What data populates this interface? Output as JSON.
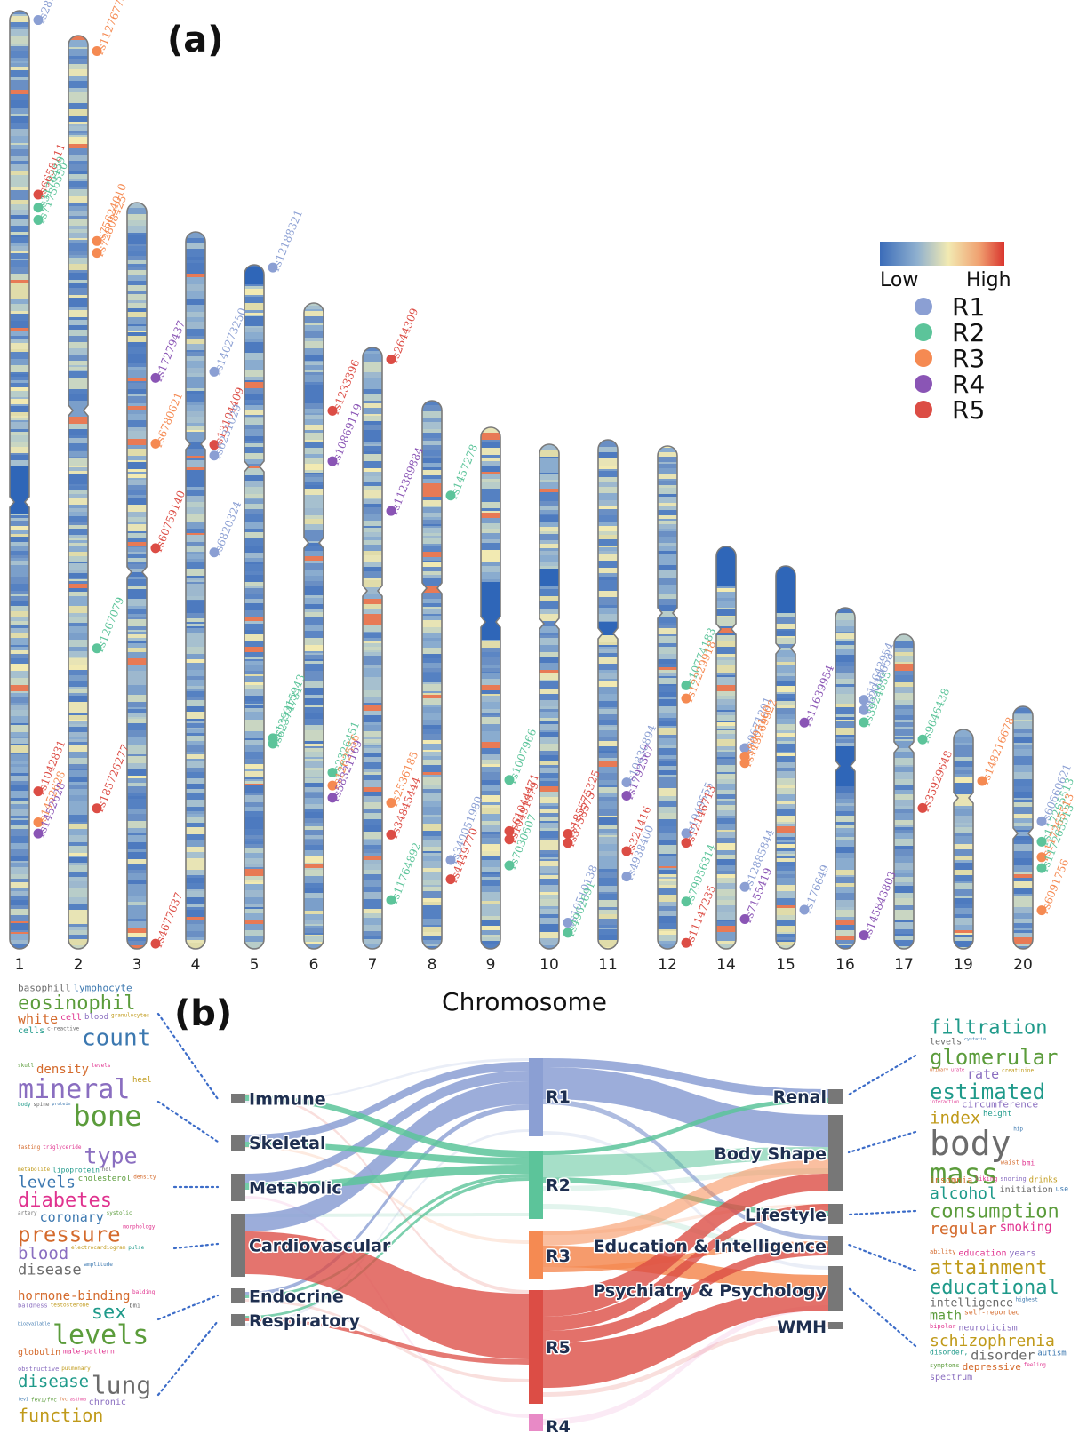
{
  "figure": {
    "panel_a_label": "(a)",
    "panel_b_label": "(b)",
    "x_axis_title": "Chromosome"
  },
  "colors": {
    "R1": "#8b9fd3",
    "R2": "#5cc49a",
    "R3": "#f58a52",
    "R4": "#8a55b5",
    "R5": "#dc4d45",
    "R4_node": "#e88ac6",
    "band_low": "#3b6cb9",
    "band_mid": "#f2eab2",
    "band_high": "#d9352e"
  },
  "legend": {
    "scale_low": "Low",
    "scale_high": "High",
    "categories": [
      "R1",
      "R2",
      "R3",
      "R4",
      "R5"
    ]
  },
  "chart_data": [
    {
      "type": "scatter",
      "title": "",
      "xlabel": "Chromosome",
      "chromosomes": [
        "1",
        "2",
        "3",
        "4",
        "5",
        "6",
        "7",
        "8",
        "9",
        "10",
        "11",
        "12",
        "14",
        "15",
        "16",
        "17",
        "19",
        "20"
      ],
      "color_scale": [
        "Low",
        "High"
      ],
      "snps": [
        {
          "chr": "1",
          "id": "rs2817145",
          "group": "R1",
          "pos": 0.01
        },
        {
          "chr": "1",
          "id": "rs6658111",
          "group": "R5",
          "pos": 0.196
        },
        {
          "chr": "1",
          "id": "rs3176459",
          "group": "R2",
          "pos": 0.21
        },
        {
          "chr": "1",
          "id": "rs71736550",
          "group": "R2",
          "pos": 0.223
        },
        {
          "chr": "1",
          "id": "rs1042831",
          "group": "R5",
          "pos": 0.832
        },
        {
          "chr": "1",
          "id": "rs1452628",
          "group": "R3",
          "pos": 0.865
        },
        {
          "chr": "1",
          "id": "rs1452628",
          "group": "R4",
          "pos": 0.877
        },
        {
          "chr": "2",
          "id": "rs112767789",
          "group": "R3",
          "pos": 0.017
        },
        {
          "chr": "2",
          "id": "rs75624010",
          "group": "R3",
          "pos": 0.225
        },
        {
          "chr": "2",
          "id": "rs72808425",
          "group": "R3",
          "pos": 0.238
        },
        {
          "chr": "2",
          "id": "rs1267079",
          "group": "R2",
          "pos": 0.671
        },
        {
          "chr": "2",
          "id": "rs185726277",
          "group": "R5",
          "pos": 0.846
        },
        {
          "chr": "3",
          "id": "rs17279437",
          "group": "R4",
          "pos": 0.235
        },
        {
          "chr": "3",
          "id": "rs6780621",
          "group": "R3",
          "pos": 0.323
        },
        {
          "chr": "3",
          "id": "rs60759140",
          "group": "R5",
          "pos": 0.463
        },
        {
          "chr": "3",
          "id": "rs4677637",
          "group": "R5",
          "pos": 0.993
        },
        {
          "chr": "4",
          "id": "rs140273250",
          "group": "R1",
          "pos": 0.195
        },
        {
          "chr": "4",
          "id": "rs13104409",
          "group": "R5",
          "pos": 0.297
        },
        {
          "chr": "4",
          "id": "rs6231029",
          "group": "R1",
          "pos": 0.312
        },
        {
          "chr": "4",
          "id": "rs6820324",
          "group": "R1",
          "pos": 0.447
        },
        {
          "chr": "5",
          "id": "rs12188321",
          "group": "R1",
          "pos": 0.004
        },
        {
          "chr": "5",
          "id": "rs139315943",
          "group": "R2",
          "pos": 0.692
        },
        {
          "chr": "5",
          "id": "rs62374731",
          "group": "R2",
          "pos": 0.7
        },
        {
          "chr": "6",
          "id": "rs1233396",
          "group": "R5",
          "pos": 0.167
        },
        {
          "chr": "6",
          "id": "rs10869119",
          "group": "R4",
          "pos": 0.245
        },
        {
          "chr": "6",
          "id": "rs2326451",
          "group": "R2",
          "pos": 0.727
        },
        {
          "chr": "6",
          "id": "rs1262556",
          "group": "R3",
          "pos": 0.747
        },
        {
          "chr": "6",
          "id": "rs58321169",
          "group": "R4",
          "pos": 0.766
        },
        {
          "chr": "7",
          "id": "rs2644309",
          "group": "R5",
          "pos": 0.02
        },
        {
          "chr": "7",
          "id": "rs112389884",
          "group": "R4",
          "pos": 0.272
        },
        {
          "chr": "7",
          "id": "rs2536185",
          "group": "R3",
          "pos": 0.757
        },
        {
          "chr": "7",
          "id": "rs34845444",
          "group": "R5",
          "pos": 0.81
        },
        {
          "chr": "7",
          "id": "rs11764892",
          "group": "R2",
          "pos": 0.919
        },
        {
          "chr": "8",
          "id": "rs1457278",
          "group": "R2",
          "pos": 0.173
        },
        {
          "chr": "8",
          "id": "rs340051980",
          "group": "R1",
          "pos": 0.838
        },
        {
          "chr": "8",
          "id": "rs4449770",
          "group": "R5",
          "pos": 0.873
        },
        {
          "chr": "9",
          "id": "rs1007966",
          "group": "R2",
          "pos": 0.676
        },
        {
          "chr": "9",
          "id": "rs61044471",
          "group": "R5",
          "pos": 0.774
        },
        {
          "chr": "9",
          "id": "rs10491879",
          "group": "R5",
          "pos": 0.79
        },
        {
          "chr": "9",
          "id": "rs7030607",
          "group": "R2",
          "pos": 0.84
        },
        {
          "chr": "10",
          "id": "rs185575325",
          "group": "R5",
          "pos": 0.772
        },
        {
          "chr": "10",
          "id": "rs3758575",
          "group": "R5",
          "pos": 0.79
        },
        {
          "chr": "10",
          "id": "rs10510138",
          "group": "R1",
          "pos": 0.948
        },
        {
          "chr": "10",
          "id": "rs4962691",
          "group": "R2",
          "pos": 0.968
        },
        {
          "chr": "11",
          "id": "rs10830894",
          "group": "R1",
          "pos": 0.673
        },
        {
          "chr": "11",
          "id": "rs1792367",
          "group": "R4",
          "pos": 0.699
        },
        {
          "chr": "11",
          "id": "rs321416",
          "group": "R5",
          "pos": 0.808
        },
        {
          "chr": "11",
          "id": "rs4938400",
          "group": "R1",
          "pos": 0.858
        },
        {
          "chr": "12",
          "id": "rs10774183",
          "group": "R2",
          "pos": 0.476
        },
        {
          "chr": "12",
          "id": "rs12229918",
          "group": "R3",
          "pos": 0.502
        },
        {
          "chr": "12",
          "id": "rs1949555",
          "group": "R1",
          "pos": 0.77
        },
        {
          "chr": "12",
          "id": "rs12146713",
          "group": "R5",
          "pos": 0.789
        },
        {
          "chr": "12",
          "id": "rs79956314",
          "group": "R2",
          "pos": 0.906
        },
        {
          "chr": "12",
          "id": "rs11147235",
          "group": "R5",
          "pos": 0.988
        },
        {
          "chr": "14",
          "id": "rs9671291",
          "group": "R1",
          "pos": 0.501
        },
        {
          "chr": "14",
          "id": "rs8005100",
          "group": "R3",
          "pos": 0.522
        },
        {
          "chr": "14",
          "id": "rs113269922",
          "group": "R3",
          "pos": 0.538
        },
        {
          "chr": "14",
          "id": "rs12885844",
          "group": "R1",
          "pos": 0.846
        },
        {
          "chr": "14",
          "id": "rs7155419",
          "group": "R4",
          "pos": 0.926
        },
        {
          "chr": "15",
          "id": "rs11639954",
          "group": "R4",
          "pos": 0.409
        },
        {
          "chr": "15",
          "id": "rs176649",
          "group": "R1",
          "pos": 0.898
        },
        {
          "chr": "16",
          "id": "rs11642954",
          "group": "R1",
          "pos": 0.27
        },
        {
          "chr": "16",
          "id": "rs62036658",
          "group": "R1",
          "pos": 0.3
        },
        {
          "chr": "16",
          "id": "rs3924855",
          "group": "R2",
          "pos": 0.336
        },
        {
          "chr": "16",
          "id": "rs145843803",
          "group": "R4",
          "pos": 0.96
        },
        {
          "chr": "17",
          "id": "rs9646438",
          "group": "R2",
          "pos": 0.334
        },
        {
          "chr": "17",
          "id": "rs35929648",
          "group": "R5",
          "pos": 0.552
        },
        {
          "chr": "19",
          "id": "rs148216678",
          "group": "R3",
          "pos": 0.235
        },
        {
          "chr": "20",
          "id": "rs60660621",
          "group": "R1",
          "pos": 0.474
        },
        {
          "chr": "20",
          "id": "rs117265513",
          "group": "R2",
          "pos": 0.558
        },
        {
          "chr": "20",
          "id": "rs117265513",
          "group": "R3",
          "pos": 0.622
        },
        {
          "chr": "20",
          "id": "rs117265513",
          "group": "R2",
          "pos": 0.667
        },
        {
          "chr": "20",
          "id": "rs6091756",
          "group": "R3",
          "pos": 0.841
        }
      ]
    },
    {
      "type": "sankey",
      "left_nodes": [
        "Immune",
        "Skeletal",
        "Metabolic",
        "Cardiovascular",
        "Endocrine",
        "Respiratory"
      ],
      "middle_nodes": [
        "R1",
        "R2",
        "R3",
        "R5",
        "R4"
      ],
      "right_nodes": [
        "Renal",
        "Body Shape",
        "Lifestyle",
        "Education & Intelligence",
        "Psychiatry & Psychology",
        "WMH"
      ]
    }
  ],
  "wordclouds": {
    "immune": [
      [
        "basophill",
        11
      ],
      [
        "lymphocyte",
        11
      ],
      [
        "eosinophil",
        22
      ],
      [
        "white",
        15
      ],
      [
        "cell",
        10
      ],
      [
        "blood",
        9
      ],
      [
        "granulocytes",
        6
      ],
      [
        "cells",
        10
      ],
      [
        "c-reactive",
        6
      ],
      [
        "count",
        26
      ]
    ],
    "skeletal": [
      [
        "skull",
        6
      ],
      [
        "density",
        14
      ],
      [
        "levels",
        6
      ],
      [
        "mineral",
        30
      ],
      [
        "heel",
        9
      ],
      [
        "body",
        6
      ],
      [
        "spine",
        6
      ],
      [
        "protein",
        5
      ],
      [
        "bone",
        32
      ]
    ],
    "metabolic": [
      [
        "fasting",
        6
      ],
      [
        "triglyceride",
        6
      ],
      [
        "type",
        25
      ],
      [
        "metabolite",
        6
      ],
      [
        "lipoprotein",
        8
      ],
      [
        "hdl",
        6
      ],
      [
        "levels",
        18
      ],
      [
        "cholesterol",
        9
      ],
      [
        "density",
        6
      ],
      [
        "diabetes",
        22
      ]
    ],
    "cardiovascular": [
      [
        "artery",
        6
      ],
      [
        "coronary",
        15
      ],
      [
        "systolic",
        6
      ],
      [
        "pressure",
        24
      ],
      [
        "morphology",
        6
      ],
      [
        "blood",
        19
      ],
      [
        "electrocardiogram",
        6
      ],
      [
        "pulse",
        6
      ],
      [
        "disease",
        17
      ],
      [
        "amplitude",
        6
      ]
    ],
    "endocrine": [
      [
        "hormone-binding",
        14
      ],
      [
        "balding",
        6
      ],
      [
        "baldness",
        7
      ],
      [
        "testosterone",
        6
      ],
      [
        "sex",
        22
      ],
      [
        "bmi",
        7
      ],
      [
        "bioavailable",
        5
      ],
      [
        "levels",
        30
      ],
      [
        "globulin",
        10
      ],
      [
        "male-pattern",
        8
      ]
    ],
    "respiratory": [
      [
        "obstructive",
        7
      ],
      [
        "pulmonary",
        6
      ],
      [
        "disease",
        19
      ],
      [
        "lung",
        28
      ],
      [
        "fev1",
        5
      ],
      [
        "fev1/fvc",
        6
      ],
      [
        "fvc",
        5
      ],
      [
        "asthma",
        5
      ],
      [
        "chronic",
        10
      ],
      [
        "function",
        20
      ]
    ],
    "renal": [
      [
        "filtration",
        22
      ],
      [
        "levels",
        10
      ],
      [
        "cystatin",
        5
      ],
      [
        "glomerular",
        24
      ],
      [
        "urinary",
        5
      ],
      [
        "urate",
        5
      ],
      [
        "rate",
        15
      ],
      [
        "creatinine",
        6
      ],
      [
        "estimated",
        24
      ]
    ],
    "body_shape": [
      [
        "interaction",
        5
      ],
      [
        "circumference",
        11
      ],
      [
        "index",
        19
      ],
      [
        "height",
        9
      ],
      [
        "body",
        38
      ],
      [
        "hip",
        6
      ],
      [
        "mass",
        32
      ],
      [
        "waist",
        7
      ],
      [
        "bmi",
        8
      ]
    ],
    "lifestyle": [
      [
        "insomnia",
        10
      ],
      [
        "liking",
        7
      ],
      [
        "snoring",
        7
      ],
      [
        "drinks",
        9
      ],
      [
        "alcohol",
        18
      ],
      [
        "initiation",
        10
      ],
      [
        "use",
        8
      ],
      [
        "consumption",
        22
      ],
      [
        "regular",
        18
      ],
      [
        "smoking",
        14
      ]
    ],
    "education": [
      [
        "ability",
        7
      ],
      [
        "education",
        10
      ],
      [
        "years",
        10
      ],
      [
        "attainment",
        22
      ],
      [
        "educational",
        22
      ],
      [
        "intelligence",
        13
      ],
      [
        "highest",
        6
      ],
      [
        "math",
        15
      ],
      [
        "self-reported",
        8
      ]
    ],
    "psychiatry": [
      [
        "bipolar",
        7
      ],
      [
        "neuroticism",
        10
      ],
      [
        "schizophrenia",
        18
      ],
      [
        "disorder,",
        8
      ],
      [
        "disorder",
        15
      ],
      [
        "autism",
        9
      ],
      [
        "symptoms",
        7
      ],
      [
        "depressive",
        11
      ],
      [
        "feeling",
        6
      ],
      [
        "spectrum",
        10
      ]
    ]
  }
}
